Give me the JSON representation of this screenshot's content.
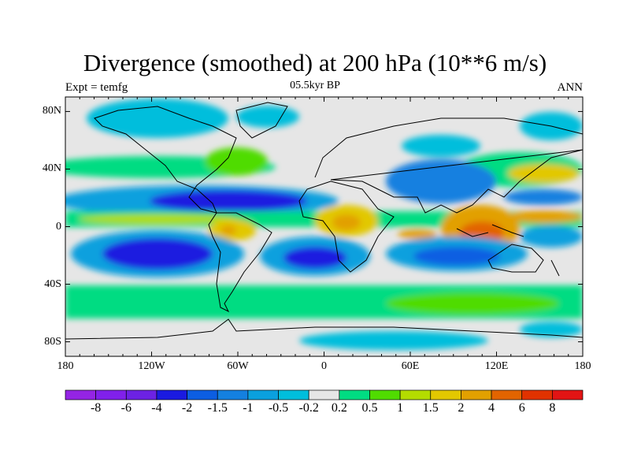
{
  "title": "Divergence (smoothed) at 200 hPa (10**6 m/s)",
  "left_string": "Expt = temfg",
  "center_string": "05.5kyr BP",
  "right_string": "ANN",
  "x_ticks": [
    "180",
    "120W",
    "60W",
    "0",
    "60E",
    "120E",
    "180"
  ],
  "y_ticks": [
    "80N",
    "40N",
    "0",
    "40S",
    "80S"
  ],
  "colorbar": {
    "labels": [
      "-8",
      "-6",
      "-4",
      "-2",
      "-1.5",
      "-1",
      "-0.5",
      "-0.2",
      "0.2",
      "0.5",
      "1",
      "1.5",
      "2",
      "4",
      "6",
      "8"
    ],
    "colors": [
      "#9424e4",
      "#8020ea",
      "#6c22e4",
      "#1a1ae0",
      "#0c5ee2",
      "#1480e0",
      "#0aa0de",
      "#00bedc",
      "#e6e6e6",
      "#00dc82",
      "#50dc00",
      "#b4dc00",
      "#e2c800",
      "#e2a000",
      "#e26400",
      "#e03200",
      "#e21414"
    ]
  }
}
